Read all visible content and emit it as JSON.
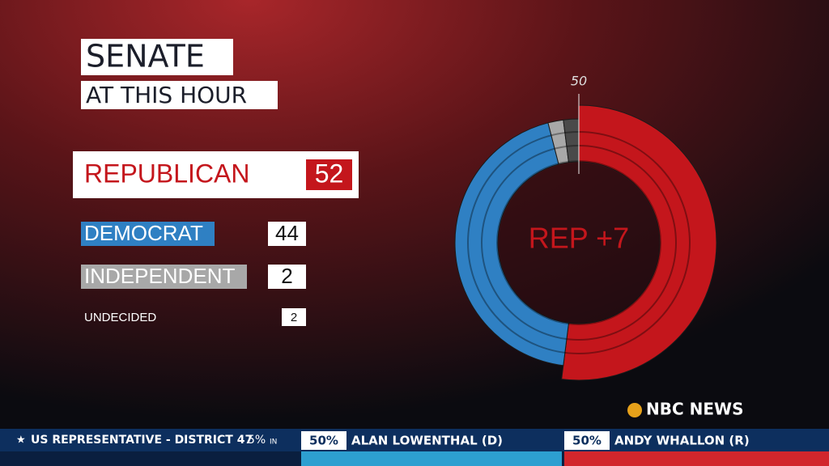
{
  "chart_data": {
    "type": "donut",
    "title": "SENATE",
    "subtitle": "AT THIS HOUR",
    "categories": [
      "REPUBLICAN",
      "DEMOCRAT",
      "INDEPENDENT",
      "UNDECIDED"
    ],
    "values": [
      52,
      44,
      2,
      2
    ],
    "colors": [
      "#c4161c",
      "#2f80c3",
      "#a8a8a8",
      "#4a4a4a"
    ],
    "center_label": "REP +7",
    "marker": 50
  },
  "logo": "NBC NEWS",
  "ticker": {
    "race": "US REPRESENTATIVE - DISTRICT 47",
    "reporting": "5%",
    "reporting_unit": "IN",
    "candidates": [
      {
        "pct": "50%",
        "name": "ALAN LOWENTHAL (D)"
      },
      {
        "pct": "50%",
        "name": "ANDY WHALLON (R)"
      }
    ]
  }
}
